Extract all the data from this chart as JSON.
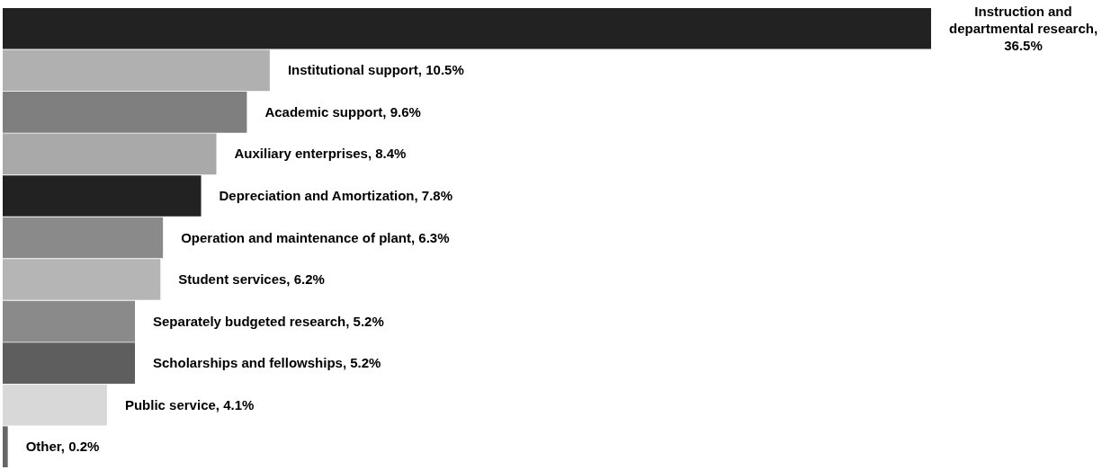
{
  "chart_data": {
    "type": "bar",
    "orientation": "horizontal",
    "tick_labels": false,
    "categories": [
      null,
      null,
      null,
      null,
      null,
      null,
      null,
      null,
      null,
      null,
      null
    ],
    "values": [
      36.5,
      10.5,
      9.6,
      8.4,
      7.8,
      6.3,
      6.2,
      5.2,
      5.2,
      4.1,
      0.2
    ],
    "value_labels": [
      "Instruction and departmental research, 36.5%",
      "Institutional support, 10.5%",
      "Academic support, 9.6%",
      "Auxiliary enterprises, 8.4%",
      "Depreciation and Amortization, 7.8%",
      "Operation and maintenance of plant, 6.3%",
      "Student services, 6.2%",
      "Separately budgeted research, 5.2%",
      "Scholarships and fellowships, 5.2%",
      "Public service, 4.1%",
      "Other, 0.2%"
    ],
    "colors": [
      "#222222",
      "#b0b0b0",
      "#7f7f7f",
      "#a9a9a9",
      "#222222",
      "#8a8a8a",
      "#b5b5b5",
      "#8a8a8a",
      "#5e5e5e",
      "#d8d8d8",
      "#666666"
    ]
  }
}
